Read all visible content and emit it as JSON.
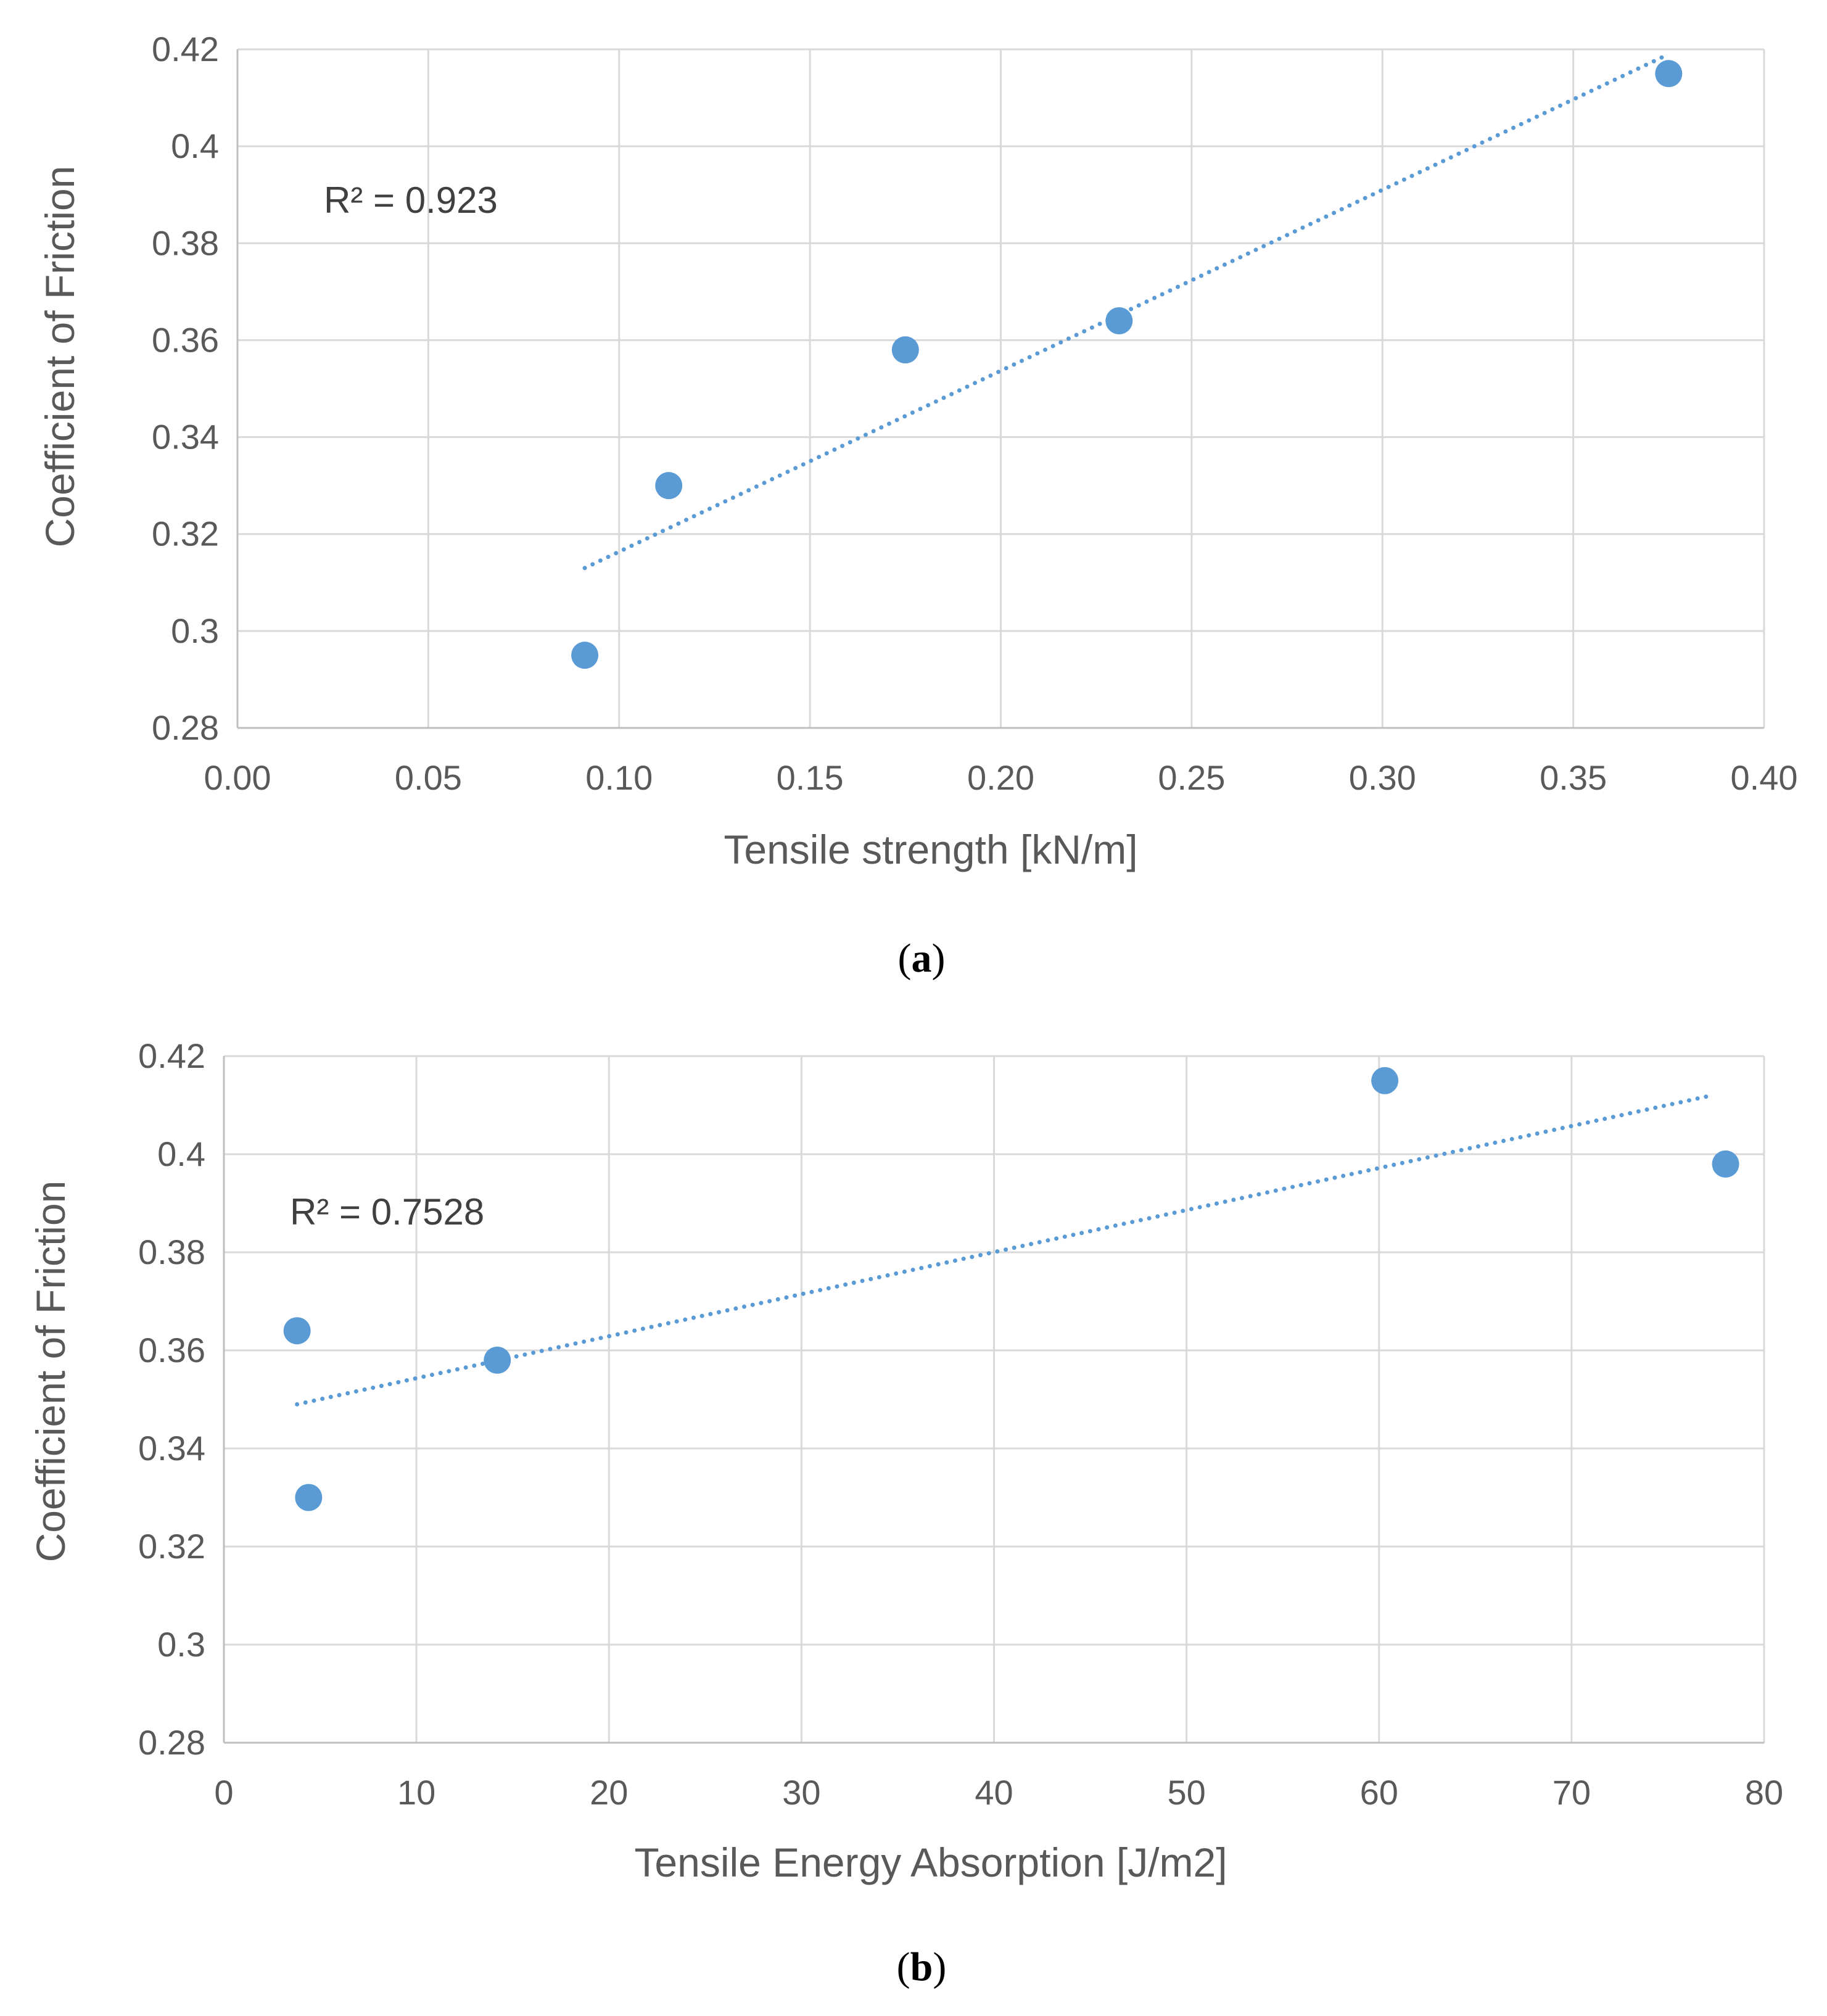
{
  "colors": {
    "marker": "#5b9bd5",
    "trendline": "#5b9bd5",
    "grid": "#d9d9d9",
    "text": "#595959"
  },
  "chart_data": [
    {
      "type": "scatter",
      "panel_label": "a",
      "xlabel": "Tensile strength [kN/m]",
      "ylabel": "Coefficient of Friction",
      "xlim": [
        0,
        0.4
      ],
      "ylim": [
        0.28,
        0.42
      ],
      "xticks": [
        "0.00",
        "0.05",
        "0.10",
        "0.15",
        "0.20",
        "0.25",
        "0.30",
        "0.35",
        "0.40"
      ],
      "yticks": [
        "0.28",
        "0.3",
        "0.32",
        "0.34",
        "0.36",
        "0.38",
        "0.4",
        "0.42"
      ],
      "grid": true,
      "points": [
        {
          "x": 0.091,
          "y": 0.295
        },
        {
          "x": 0.113,
          "y": 0.33
        },
        {
          "x": 0.175,
          "y": 0.358
        },
        {
          "x": 0.231,
          "y": 0.364
        },
        {
          "x": 0.375,
          "y": 0.415
        }
      ],
      "trendline": {
        "type": "linear",
        "x": [
          0.091,
          0.375
        ],
        "y": [
          0.313,
          0.419
        ]
      },
      "r2_label": "R² = 0.923"
    },
    {
      "type": "scatter",
      "panel_label": "b",
      "xlabel": "Tensile Energy Absorption  [J/m2]",
      "ylabel": "Coefficient of Friction",
      "xlim": [
        0,
        80
      ],
      "ylim": [
        0.28,
        0.42
      ],
      "xticks": [
        "0",
        "10",
        "20",
        "30",
        "40",
        "50",
        "60",
        "70",
        "80"
      ],
      "yticks": [
        "0.28",
        "0.3",
        "0.32",
        "0.34",
        "0.36",
        "0.38",
        "0.4",
        "0.42"
      ],
      "grid": true,
      "points": [
        {
          "x": 3.8,
          "y": 0.364
        },
        {
          "x": 4.4,
          "y": 0.33
        },
        {
          "x": 14.2,
          "y": 0.358
        },
        {
          "x": 60.3,
          "y": 0.415
        },
        {
          "x": 78.0,
          "y": 0.398
        }
      ],
      "trendline": {
        "type": "linear",
        "x": [
          3.8,
          77.3
        ],
        "y": [
          0.349,
          0.412
        ]
      },
      "r2_label": "R² = 0.7528"
    }
  ]
}
